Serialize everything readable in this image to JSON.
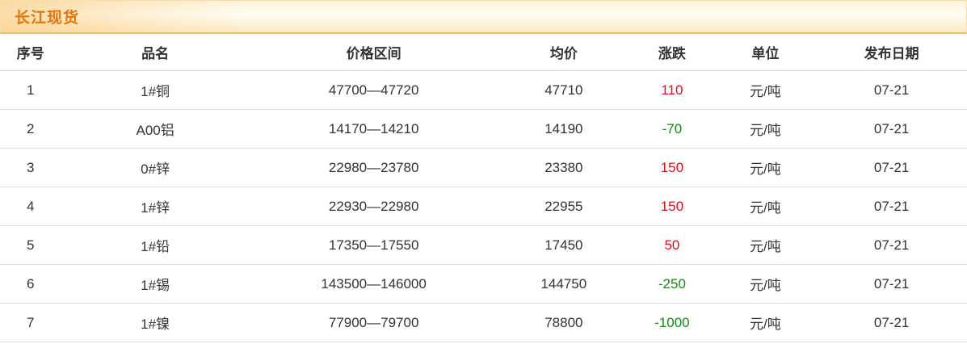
{
  "section": {
    "title": "长江现货"
  },
  "colors": {
    "title": "#e8740c",
    "up": "#dd1122",
    "down": "#168a16"
  },
  "table": {
    "columns": {
      "no": "序号",
      "name": "品名",
      "range": "价格区间",
      "avg": "均价",
      "change": "涨跌",
      "unit": "单位",
      "date": "发布日期"
    },
    "rows": [
      {
        "no": "1",
        "name": "1#铜",
        "range": "47700—47720",
        "avg": "47710",
        "change": "110",
        "dir": "up",
        "unit": "元/吨",
        "date": "07-21"
      },
      {
        "no": "2",
        "name": "A00铝",
        "range": "14170—14210",
        "avg": "14190",
        "change": "-70",
        "dir": "down",
        "unit": "元/吨",
        "date": "07-21"
      },
      {
        "no": "3",
        "name": "0#锌",
        "range": "22980—23780",
        "avg": "23380",
        "change": "150",
        "dir": "up",
        "unit": "元/吨",
        "date": "07-21"
      },
      {
        "no": "4",
        "name": "1#锌",
        "range": "22930—22980",
        "avg": "22955",
        "change": "150",
        "dir": "up",
        "unit": "元/吨",
        "date": "07-21"
      },
      {
        "no": "5",
        "name": "1#铅",
        "range": "17350—17550",
        "avg": "17450",
        "change": "50",
        "dir": "up",
        "unit": "元/吨",
        "date": "07-21"
      },
      {
        "no": "6",
        "name": "1#锡",
        "range": "143500—146000",
        "avg": "144750",
        "change": "-250",
        "dir": "down",
        "unit": "元/吨",
        "date": "07-21"
      },
      {
        "no": "7",
        "name": "1#镍",
        "range": "77900—79700",
        "avg": "78800",
        "change": "-1000",
        "dir": "down",
        "unit": "元/吨",
        "date": "07-21"
      }
    ]
  }
}
